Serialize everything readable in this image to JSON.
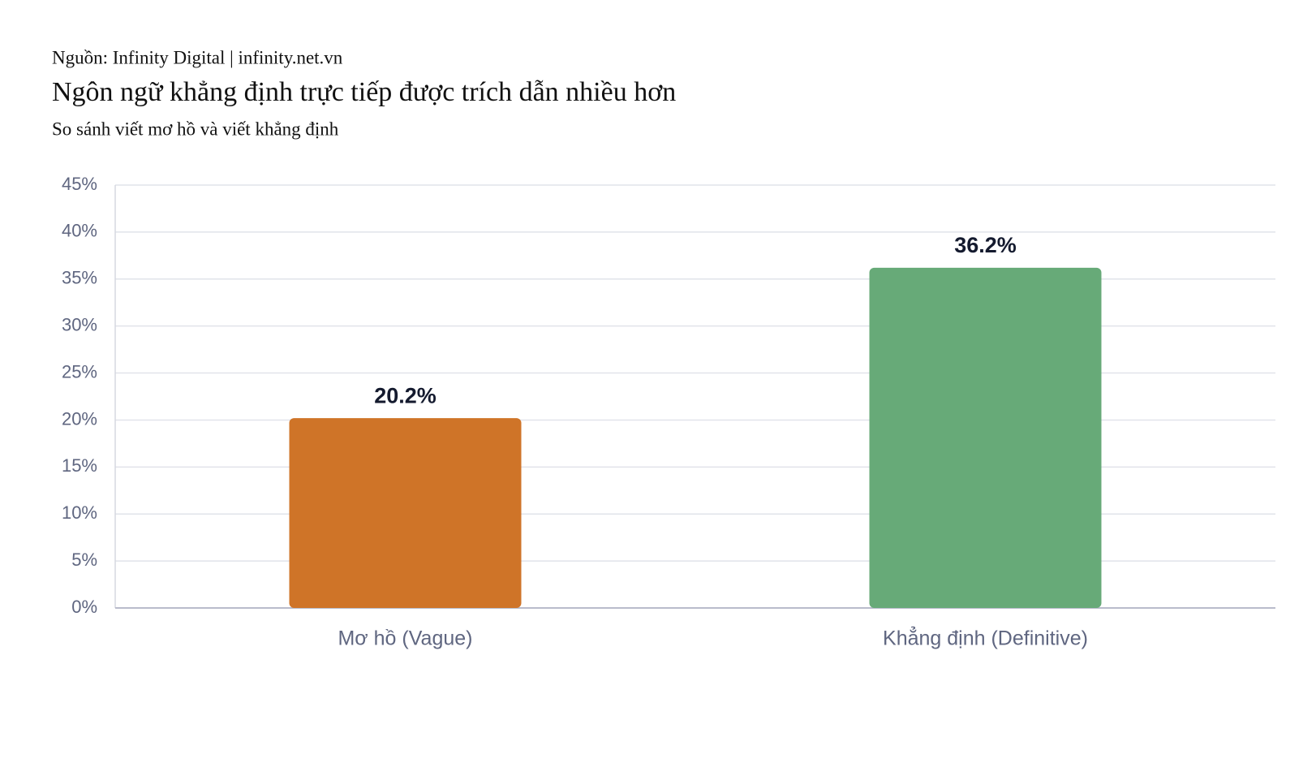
{
  "chart_data": {
    "type": "bar",
    "source": "Nguồn: Infinity Digital | infinity.net.vn",
    "title": "Ngôn ngữ khẳng định trực tiếp được trích dẫn nhiều hơn",
    "subtitle": "So sánh viết mơ hồ và viết khẳng định",
    "categories": [
      "Mơ hồ (Vague)",
      "Khẳng định (Definitive)"
    ],
    "values": [
      20.2,
      36.2
    ],
    "value_labels": [
      "20.2%",
      "36.2%"
    ],
    "colors": [
      "#cf7428",
      "#67aa78"
    ],
    "ylim": [
      0,
      45
    ],
    "yticks": [
      {
        "value": 0,
        "label": "0%"
      },
      {
        "value": 5,
        "label": "5%"
      },
      {
        "value": 10,
        "label": "10%"
      },
      {
        "value": 15,
        "label": "15%"
      },
      {
        "value": 20,
        "label": "20%"
      },
      {
        "value": 25,
        "label": "25%"
      },
      {
        "value": 30,
        "label": "30%"
      },
      {
        "value": 35,
        "label": "35%"
      },
      {
        "value": 40,
        "label": "40%"
      },
      {
        "value": 45,
        "label": "45%"
      }
    ],
    "grid": true
  }
}
